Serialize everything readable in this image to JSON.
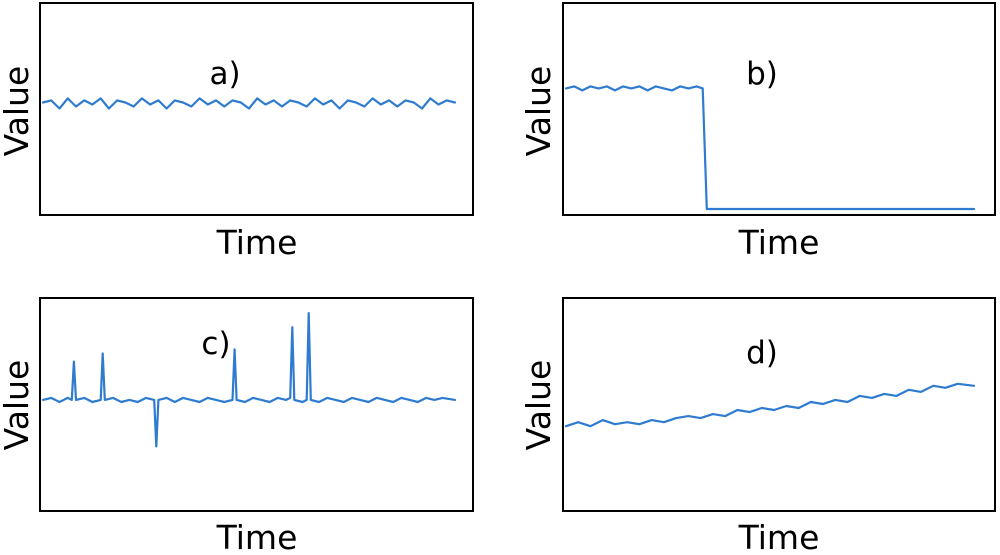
{
  "style": {
    "line_color": "#2e7bd0",
    "frame_color": "#000000",
    "background": "#ffffff"
  },
  "chart_data": [
    {
      "type": "line",
      "panel_label": "a)",
      "xlabel": "Time",
      "ylabel": "Value",
      "xlim": [
        0,
        100
      ],
      "ylim": [
        0,
        100
      ],
      "description": "noisy stationary signal",
      "x": [
        0,
        2,
        4,
        6,
        8,
        10,
        12,
        14,
        16,
        18,
        20,
        22,
        24,
        26,
        28,
        30,
        32,
        34,
        36,
        38,
        40,
        42,
        44,
        46,
        48,
        50,
        52,
        54,
        56,
        58,
        60,
        62,
        64,
        66,
        68,
        70,
        72,
        74,
        76,
        78,
        80,
        82,
        84,
        86,
        88,
        90,
        92,
        94,
        96,
        98,
        100
      ],
      "y": [
        54,
        55,
        51,
        56,
        52,
        55,
        53,
        56,
        51,
        55,
        54,
        52,
        56,
        53,
        55,
        51,
        55,
        54,
        52,
        56,
        53,
        55,
        52,
        55,
        54,
        51,
        56,
        53,
        55,
        52,
        55,
        54,
        52,
        56,
        53,
        55,
        51,
        55,
        54,
        52,
        56,
        53,
        55,
        52,
        55,
        54,
        51,
        56,
        53,
        55,
        54
      ]
    },
    {
      "type": "line",
      "panel_label": "b)",
      "xlabel": "Time",
      "ylabel": "Value",
      "xlim": [
        0,
        100
      ],
      "ylim": [
        0,
        100
      ],
      "description": "level shift / step drop",
      "x": [
        0,
        2,
        4,
        6,
        8,
        10,
        12,
        14,
        16,
        18,
        20,
        22,
        24,
        26,
        28,
        30,
        32,
        33.5,
        34.5,
        40,
        50,
        60,
        70,
        80,
        90,
        100
      ],
      "y": [
        61,
        62,
        60,
        62,
        61,
        62,
        60,
        62,
        61,
        62,
        60,
        62,
        61,
        60,
        62,
        61,
        62,
        61,
        1,
        1,
        1,
        1,
        1,
        1,
        1,
        1
      ]
    },
    {
      "type": "line",
      "panel_label": "c)",
      "xlabel": "Time",
      "ylabel": "Value",
      "xlim": [
        0,
        100
      ],
      "ylim": [
        0,
        100
      ],
      "description": "stationary signal with spikes",
      "x": [
        0,
        2,
        4,
        6,
        7,
        7.5,
        8,
        10,
        12,
        14,
        14.5,
        15,
        17,
        19,
        21,
        23,
        25,
        27,
        27.5,
        28,
        30,
        32,
        34,
        36,
        38,
        40,
        42,
        44,
        46,
        46.5,
        47,
        49,
        51,
        53,
        55,
        57,
        59,
        60,
        60.5,
        61,
        63,
        64,
        64.5,
        65,
        67,
        69,
        71,
        73,
        75,
        77,
        79,
        81,
        83,
        85,
        87,
        89,
        91,
        93,
        95,
        97,
        100
      ],
      "y": [
        53,
        54,
        52,
        54,
        53,
        72,
        53,
        54,
        52,
        53,
        76,
        53,
        54,
        52,
        53,
        52,
        54,
        53,
        30,
        53,
        54,
        52,
        54,
        53,
        52,
        54,
        53,
        52,
        53,
        78,
        53,
        52,
        54,
        53,
        52,
        54,
        53,
        54,
        89,
        53,
        52,
        53,
        96,
        53,
        52,
        54,
        53,
        52,
        54,
        53,
        52,
        54,
        53,
        52,
        54,
        53,
        52,
        54,
        53,
        54,
        53
      ]
    },
    {
      "type": "line",
      "panel_label": "d)",
      "xlabel": "Time",
      "ylabel": "Value",
      "xlim": [
        0,
        100
      ],
      "ylim": [
        0,
        100
      ],
      "description": "noisy upward trend",
      "x": [
        0,
        3,
        6,
        9,
        12,
        15,
        18,
        21,
        24,
        27,
        30,
        33,
        36,
        39,
        42,
        45,
        48,
        51,
        54,
        57,
        60,
        63,
        66,
        69,
        72,
        75,
        78,
        81,
        84,
        87,
        90,
        93,
        96,
        100
      ],
      "y": [
        40,
        42,
        40,
        43,
        41,
        42,
        41,
        43,
        42,
        44,
        45,
        44,
        46,
        45,
        48,
        47,
        49,
        48,
        50,
        49,
        52,
        51,
        53,
        52,
        55,
        54,
        56,
        55,
        58,
        57,
        60,
        59,
        61,
        60
      ]
    }
  ]
}
